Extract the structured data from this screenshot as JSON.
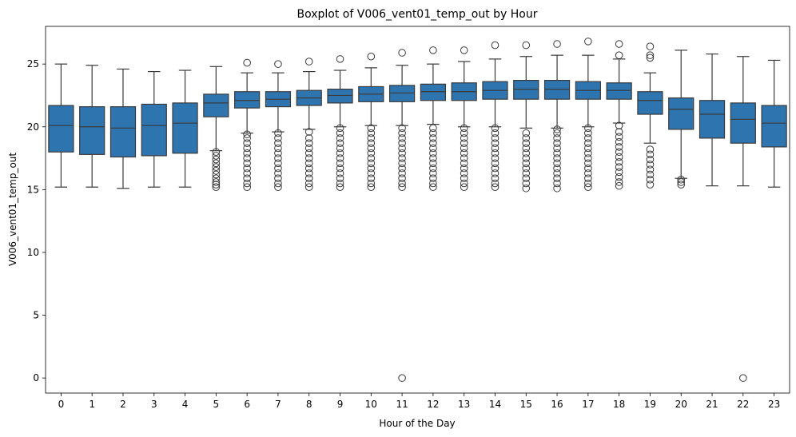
{
  "chart_data": {
    "type": "box",
    "title": "Boxplot of V006_vent01_temp_out by Hour",
    "xlabel": "Hour of the Day",
    "ylabel": "V006_vent01_temp_out",
    "ylim": [
      -1.2,
      28.0
    ],
    "yticks": [
      0,
      5,
      10,
      15,
      20,
      25
    ],
    "grid": false,
    "legend": "none",
    "box_color": "#2e75b0",
    "line_color": "#3a3a3a",
    "categories": [
      "0",
      "1",
      "2",
      "3",
      "4",
      "5",
      "6",
      "7",
      "8",
      "9",
      "10",
      "11",
      "12",
      "13",
      "14",
      "15",
      "16",
      "17",
      "18",
      "19",
      "20",
      "21",
      "22",
      "23"
    ],
    "boxes": [
      {
        "hour": "0",
        "whislo": 15.2,
        "q1": 18.0,
        "med": 20.1,
        "q3": 21.7,
        "whishi": 25.0,
        "fliers": []
      },
      {
        "hour": "1",
        "whislo": 15.2,
        "q1": 17.8,
        "med": 20.0,
        "q3": 21.6,
        "whishi": 24.9,
        "fliers": []
      },
      {
        "hour": "2",
        "whislo": 15.1,
        "q1": 17.6,
        "med": 19.9,
        "q3": 21.6,
        "whishi": 24.6,
        "fliers": []
      },
      {
        "hour": "3",
        "whislo": 15.2,
        "q1": 17.7,
        "med": 20.1,
        "q3": 21.8,
        "whishi": 24.4,
        "fliers": []
      },
      {
        "hour": "4",
        "whislo": 15.2,
        "q1": 17.9,
        "med": 20.3,
        "q3": 21.9,
        "whishi": 24.5,
        "fliers": []
      },
      {
        "hour": "5",
        "whislo": 18.1,
        "q1": 20.8,
        "med": 21.9,
        "q3": 22.6,
        "whishi": 24.8,
        "fliers": [
          15.2,
          15.4,
          15.6,
          15.9,
          16.2,
          16.5,
          16.8,
          17.1,
          17.4,
          17.7,
          18.0
        ]
      },
      {
        "hour": "6",
        "whislo": 19.5,
        "q1": 21.5,
        "med": 22.1,
        "q3": 22.8,
        "whishi": 24.3,
        "fliers": [
          15.2,
          15.5,
          15.9,
          16.3,
          16.7,
          17.1,
          17.5,
          17.9,
          18.3,
          18.7,
          19.1,
          19.4,
          25.1
        ]
      },
      {
        "hour": "7",
        "whislo": 19.6,
        "q1": 21.6,
        "med": 22.2,
        "q3": 22.8,
        "whishi": 24.3,
        "fliers": [
          15.2,
          15.5,
          15.9,
          16.3,
          16.7,
          17.1,
          17.5,
          17.9,
          18.3,
          18.7,
          19.1,
          19.5,
          25.0
        ]
      },
      {
        "hour": "8",
        "whislo": 19.8,
        "q1": 21.7,
        "med": 22.3,
        "q3": 22.9,
        "whishi": 24.4,
        "fliers": [
          15.2,
          15.5,
          15.9,
          16.3,
          16.7,
          17.1,
          17.5,
          17.9,
          18.3,
          18.7,
          19.1,
          19.6,
          25.2
        ]
      },
      {
        "hour": "9",
        "whislo": 20.0,
        "q1": 21.9,
        "med": 22.5,
        "q3": 23.0,
        "whishi": 24.5,
        "fliers": [
          15.2,
          15.5,
          15.9,
          16.3,
          16.7,
          17.1,
          17.5,
          17.9,
          18.3,
          18.7,
          19.1,
          19.5,
          19.9,
          25.4
        ]
      },
      {
        "hour": "10",
        "whislo": 20.1,
        "q1": 22.0,
        "med": 22.6,
        "q3": 23.2,
        "whishi": 24.7,
        "fliers": [
          15.2,
          15.5,
          15.9,
          16.3,
          16.7,
          17.1,
          17.5,
          17.9,
          18.3,
          18.7,
          19.1,
          19.5,
          19.9,
          25.6
        ]
      },
      {
        "hour": "11",
        "whislo": 20.1,
        "q1": 22.0,
        "med": 22.7,
        "q3": 23.3,
        "whishi": 24.9,
        "fliers": [
          0.0,
          15.2,
          15.5,
          15.9,
          16.3,
          16.7,
          17.1,
          17.5,
          17.9,
          18.3,
          18.7,
          19.1,
          19.5,
          19.9,
          25.9
        ]
      },
      {
        "hour": "12",
        "whislo": 20.2,
        "q1": 22.1,
        "med": 22.8,
        "q3": 23.4,
        "whishi": 25.0,
        "fliers": [
          15.2,
          15.5,
          15.9,
          16.3,
          16.7,
          17.1,
          17.5,
          17.9,
          18.3,
          18.7,
          19.1,
          19.5,
          19.9,
          26.1
        ]
      },
      {
        "hour": "13",
        "whislo": 20.0,
        "q1": 22.1,
        "med": 22.8,
        "q3": 23.5,
        "whishi": 25.2,
        "fliers": [
          15.2,
          15.5,
          15.9,
          16.3,
          16.7,
          17.1,
          17.5,
          17.9,
          18.3,
          18.7,
          19.1,
          19.5,
          19.9,
          26.1
        ]
      },
      {
        "hour": "14",
        "whislo": 20.0,
        "q1": 22.2,
        "med": 22.9,
        "q3": 23.6,
        "whishi": 25.4,
        "fliers": [
          15.2,
          15.5,
          15.9,
          16.3,
          16.7,
          17.1,
          17.5,
          17.9,
          18.3,
          18.7,
          19.1,
          19.5,
          19.9,
          26.5
        ]
      },
      {
        "hour": "15",
        "whislo": 19.9,
        "q1": 22.2,
        "med": 23.0,
        "q3": 23.7,
        "whishi": 25.6,
        "fliers": [
          15.1,
          15.5,
          15.9,
          16.3,
          16.7,
          17.1,
          17.5,
          17.9,
          18.3,
          18.7,
          19.1,
          19.5,
          26.5
        ]
      },
      {
        "hour": "16",
        "whislo": 19.9,
        "q1": 22.2,
        "med": 23.0,
        "q3": 23.7,
        "whishi": 25.7,
        "fliers": [
          15.1,
          15.5,
          15.9,
          16.3,
          16.7,
          17.1,
          17.5,
          17.9,
          18.3,
          18.7,
          19.1,
          19.5,
          19.8,
          26.6
        ]
      },
      {
        "hour": "17",
        "whislo": 20.0,
        "q1": 22.2,
        "med": 22.9,
        "q3": 23.6,
        "whishi": 25.7,
        "fliers": [
          15.2,
          15.5,
          15.9,
          16.3,
          16.7,
          17.1,
          17.5,
          17.9,
          18.3,
          18.7,
          19.1,
          19.5,
          19.9,
          26.8
        ]
      },
      {
        "hour": "18",
        "whislo": 20.3,
        "q1": 22.2,
        "med": 22.9,
        "q3": 23.5,
        "whishi": 25.4,
        "fliers": [
          15.3,
          15.6,
          16.0,
          16.4,
          16.8,
          17.2,
          17.6,
          18.0,
          18.4,
          18.8,
          19.2,
          19.6,
          20.1,
          25.7,
          26.6
        ]
      },
      {
        "hour": "19",
        "whislo": 18.7,
        "q1": 21.0,
        "med": 22.1,
        "q3": 22.8,
        "whishi": 24.3,
        "fliers": [
          15.4,
          15.8,
          16.2,
          16.6,
          17.0,
          17.4,
          17.8,
          18.2,
          25.5,
          25.7,
          26.4
        ]
      },
      {
        "hour": "20",
        "whislo": 15.9,
        "q1": 19.8,
        "med": 21.4,
        "q3": 22.3,
        "whishi": 26.1,
        "fliers": [
          15.4,
          15.6,
          15.8
        ]
      },
      {
        "hour": "21",
        "whislo": 15.3,
        "q1": 19.1,
        "med": 21.0,
        "q3": 22.1,
        "whishi": 25.8,
        "fliers": []
      },
      {
        "hour": "22",
        "whislo": 15.3,
        "q1": 18.7,
        "med": 20.6,
        "q3": 21.9,
        "whishi": 25.6,
        "fliers": [
          0.0
        ]
      },
      {
        "hour": "23",
        "whislo": 15.2,
        "q1": 18.4,
        "med": 20.3,
        "q3": 21.7,
        "whishi": 25.3,
        "fliers": []
      }
    ]
  }
}
